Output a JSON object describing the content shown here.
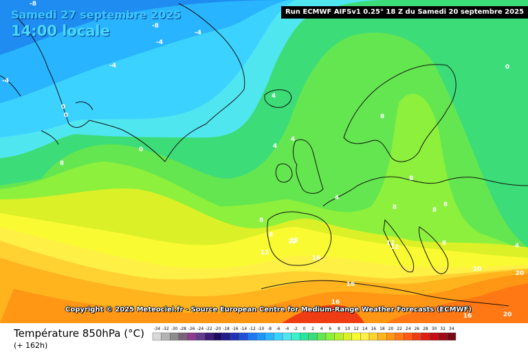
{
  "header": {
    "date": "Samedi 27 septembre 2025",
    "time": "14:00 locale",
    "run": "Run ECMWF AIFSv1 0.25° 18 Z du Samedi 20 septembre 2025"
  },
  "copyright": "Copyright © 2025 Meteociel.fr - Source European Centre for Medium-Range Weather Forecasts (ECMWF)",
  "footer": {
    "variable": "Température 850hPa (°C)",
    "forecast_hour": "(+ 162h)"
  },
  "legend": {
    "values": [
      "-34",
      "-32",
      "-30",
      "-28",
      "-26",
      "-24",
      "-22",
      "-20",
      "-18",
      "-16",
      "-14",
      "-12",
      "-10",
      "-8",
      "-6",
      "-4",
      "-2",
      "0",
      "2",
      "4",
      "6",
      "8",
      "10",
      "12",
      "14",
      "16",
      "18",
      "20",
      "22",
      "24",
      "26",
      "28",
      "30",
      "32",
      "34"
    ],
    "colors": [
      "#d8d8d8",
      "#b4b4b4",
      "#8c8c8c",
      "#786478",
      "#8c3c8c",
      "#643c8c",
      "#3c1e78",
      "#1e0a64",
      "#1e1e8c",
      "#1e32b4",
      "#1e50dc",
      "#1e78f0",
      "#1e96ff",
      "#28b4ff",
      "#3cd2ff",
      "#50e6f0",
      "#3cf0c8",
      "#28e6a0",
      "#3cdc78",
      "#64e650",
      "#8cf03c",
      "#b4f028",
      "#dcf028",
      "#fafa32",
      "#fff046",
      "#ffd232",
      "#ffb41e",
      "#ff9614",
      "#ff7814",
      "#ff5a14",
      "#f03c14",
      "#dc1e14",
      "#c80a14",
      "#a00a14",
      "#780a14"
    ]
  },
  "contour_labels": [
    {
      "text": "-8"
    },
    {
      "text": "-8"
    },
    {
      "text": "-4"
    },
    {
      "text": "-4"
    },
    {
      "text": "-4"
    },
    {
      "text": "-4"
    },
    {
      "text": "0"
    },
    {
      "text": "0"
    },
    {
      "text": "0"
    },
    {
      "text": "4"
    },
    {
      "text": "4"
    },
    {
      "text": "4"
    },
    {
      "text": "4"
    },
    {
      "text": "8"
    },
    {
      "text": "8"
    },
    {
      "text": "8"
    },
    {
      "text": "8"
    },
    {
      "text": "8"
    },
    {
      "text": "8"
    },
    {
      "text": "8"
    },
    {
      "text": "12"
    },
    {
      "text": "12"
    },
    {
      "text": "12"
    },
    {
      "text": "12"
    },
    {
      "text": "16"
    },
    {
      "text": "16"
    },
    {
      "text": "16"
    },
    {
      "text": "16"
    },
    {
      "text": "20"
    },
    {
      "text": "20"
    },
    {
      "text": "20"
    },
    {
      "text": "0"
    },
    {
      "text": "4"
    },
    {
      "text": "8"
    },
    {
      "text": "8"
    },
    {
      "text": "12"
    }
  ]
}
